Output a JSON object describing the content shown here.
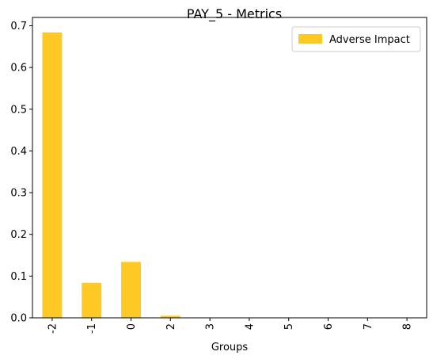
{
  "chart_data": {
    "type": "bar",
    "title": "PAY_5 - Metrics",
    "xlabel": "Groups",
    "ylabel": "",
    "categories": [
      "-2",
      "-1",
      "0",
      "2",
      "3",
      "4",
      "5",
      "6",
      "7",
      "8"
    ],
    "series": [
      {
        "name": "Adverse Impact",
        "values": [
          0.684,
          0.084,
          0.134,
          0.005,
          0.0,
          0.0,
          0.0,
          0.0,
          0.0,
          0.0
        ],
        "color": "#fec925"
      }
    ],
    "ylim": [
      0,
      0.72
    ],
    "yticks": [
      0.0,
      0.1,
      0.2,
      0.3,
      0.4,
      0.5,
      0.6,
      0.7
    ],
    "ytick_labels": [
      "0.0",
      "0.1",
      "0.2",
      "0.3",
      "0.4",
      "0.5",
      "0.6",
      "0.7"
    ],
    "grid": false,
    "legend_position": "top-right"
  }
}
